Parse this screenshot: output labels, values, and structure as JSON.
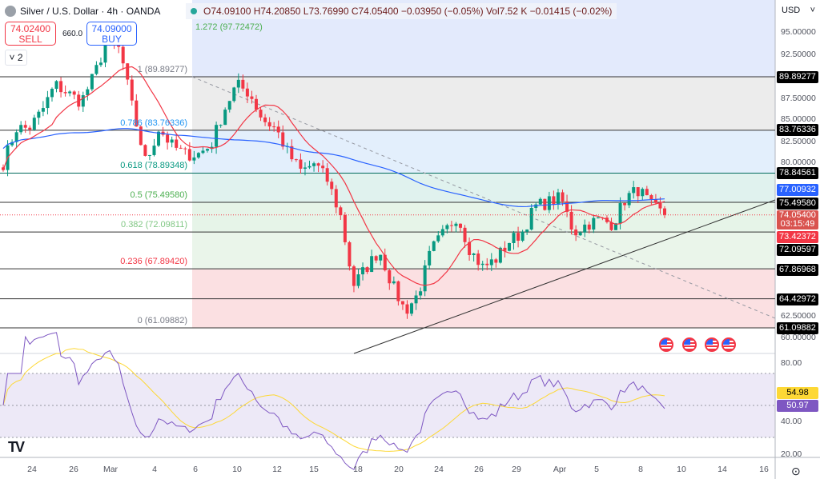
{
  "header": {
    "title": "Silver / U.S. Dollar · 4h · OANDA",
    "ohlc": "O74.09100 H74.20850 L73.76990 C74.05400 −0.03950 (−0.05%) Vol7.52 K −0.01415 (−0.02%)",
    "extension_label": "1.272 (97.72472)"
  },
  "trade": {
    "sell_price": "74.02400",
    "sell_label": "SELL",
    "buy_price": "74.09000",
    "buy_label": "BUY",
    "spread": "660.0",
    "collapse_count": "2"
  },
  "currency": "USD",
  "price_ticks": [
    "95.00000",
    "92.50000",
    "87.50000",
    "85.00000",
    "82.50000",
    "80.00000",
    "62.50000",
    "60.00000"
  ],
  "fib_levels": [
    {
      "label": "1 (89.89277)",
      "value": 89.89277,
      "color": "#787b86"
    },
    {
      "label": "0.786 (83.76336)",
      "value": 83.76336,
      "color": "#2196f3"
    },
    {
      "label": "0.618 (78.89348)",
      "value": 78.89348,
      "color": "#089981"
    },
    {
      "label": "0.5 (75.49580)",
      "value": 75.4958,
      "color": "#4caf50"
    },
    {
      "label": "0.382 (72.09811)",
      "value": 72.09811,
      "color": "#81c784"
    },
    {
      "label": "0.236 (67.89420)",
      "value": 67.8942,
      "color": "#f23645"
    },
    {
      "label": "0 (61.09882)",
      "value": 61.09882,
      "color": "#787b86"
    }
  ],
  "axis_labels": [
    {
      "text": "89.89277",
      "bg": "#000000"
    },
    {
      "text": "83.76336",
      "bg": "#000000"
    },
    {
      "text": "78.84561",
      "bg": "#000000"
    },
    {
      "text": "77.00932",
      "bg": "#2962ff"
    },
    {
      "text": "75.49580",
      "bg": "#000000"
    },
    {
      "text": "72.09597",
      "bg": "#000000"
    },
    {
      "text": "67.86968",
      "bg": "#000000"
    },
    {
      "text": "64.42972",
      "bg": "#000000"
    },
    {
      "text": "61.09882",
      "bg": "#000000"
    }
  ],
  "last_price": {
    "price": "74.05400",
    "countdown": "03:15:49",
    "color": "#d9534f"
  },
  "ma_fast_label": {
    "text": "73.42372",
    "color": "#f23645"
  },
  "rsi": {
    "rsi_value": "50.97",
    "rsi_color": "#7e57c2",
    "ma_value": "54.98",
    "ma_color": "#fdd835",
    "ticks": [
      "80.00",
      "40.00",
      "20.00"
    ],
    "upper": 70,
    "lower": 30
  },
  "time_axis": [
    "24",
    "26",
    "Mar",
    "4",
    "6",
    "10",
    "12",
    "15",
    "18",
    "20",
    "24",
    "26",
    "29",
    "Apr",
    "5",
    "8",
    "10",
    "14",
    "16"
  ],
  "colors": {
    "up": "#089981",
    "down": "#f23645",
    "ma_fast": "#f23645",
    "ma_slow": "#2962ff"
  },
  "price_path": [
    [
      80,
      84
    ],
    [
      84,
      86
    ],
    [
      89,
      88
    ],
    [
      87,
      90
    ],
    [
      94,
      93
    ],
    [
      86,
      80
    ],
    [
      84,
      82
    ],
    [
      81,
      81
    ],
    [
      82,
      86
    ],
    [
      89,
      88
    ],
    [
      85,
      84
    ],
    [
      81,
      79
    ],
    [
      80,
      78
    ],
    [
      74,
      66
    ],
    [
      68,
      70
    ],
    [
      66,
      63
    ],
    [
      65,
      70
    ],
    [
      72,
      74
    ],
    [
      70,
      68
    ],
    [
      69,
      71
    ],
    [
      72,
      75
    ],
    [
      75.5,
      76
    ],
    [
      72,
      73
    ],
    [
      73.5,
      73
    ],
    [
      76,
      77
    ],
    [
      75,
      74.05
    ]
  ],
  "events": [
    "economic-event-us",
    "economic-event-us",
    "economic-event-us",
    "economic-event-us"
  ]
}
